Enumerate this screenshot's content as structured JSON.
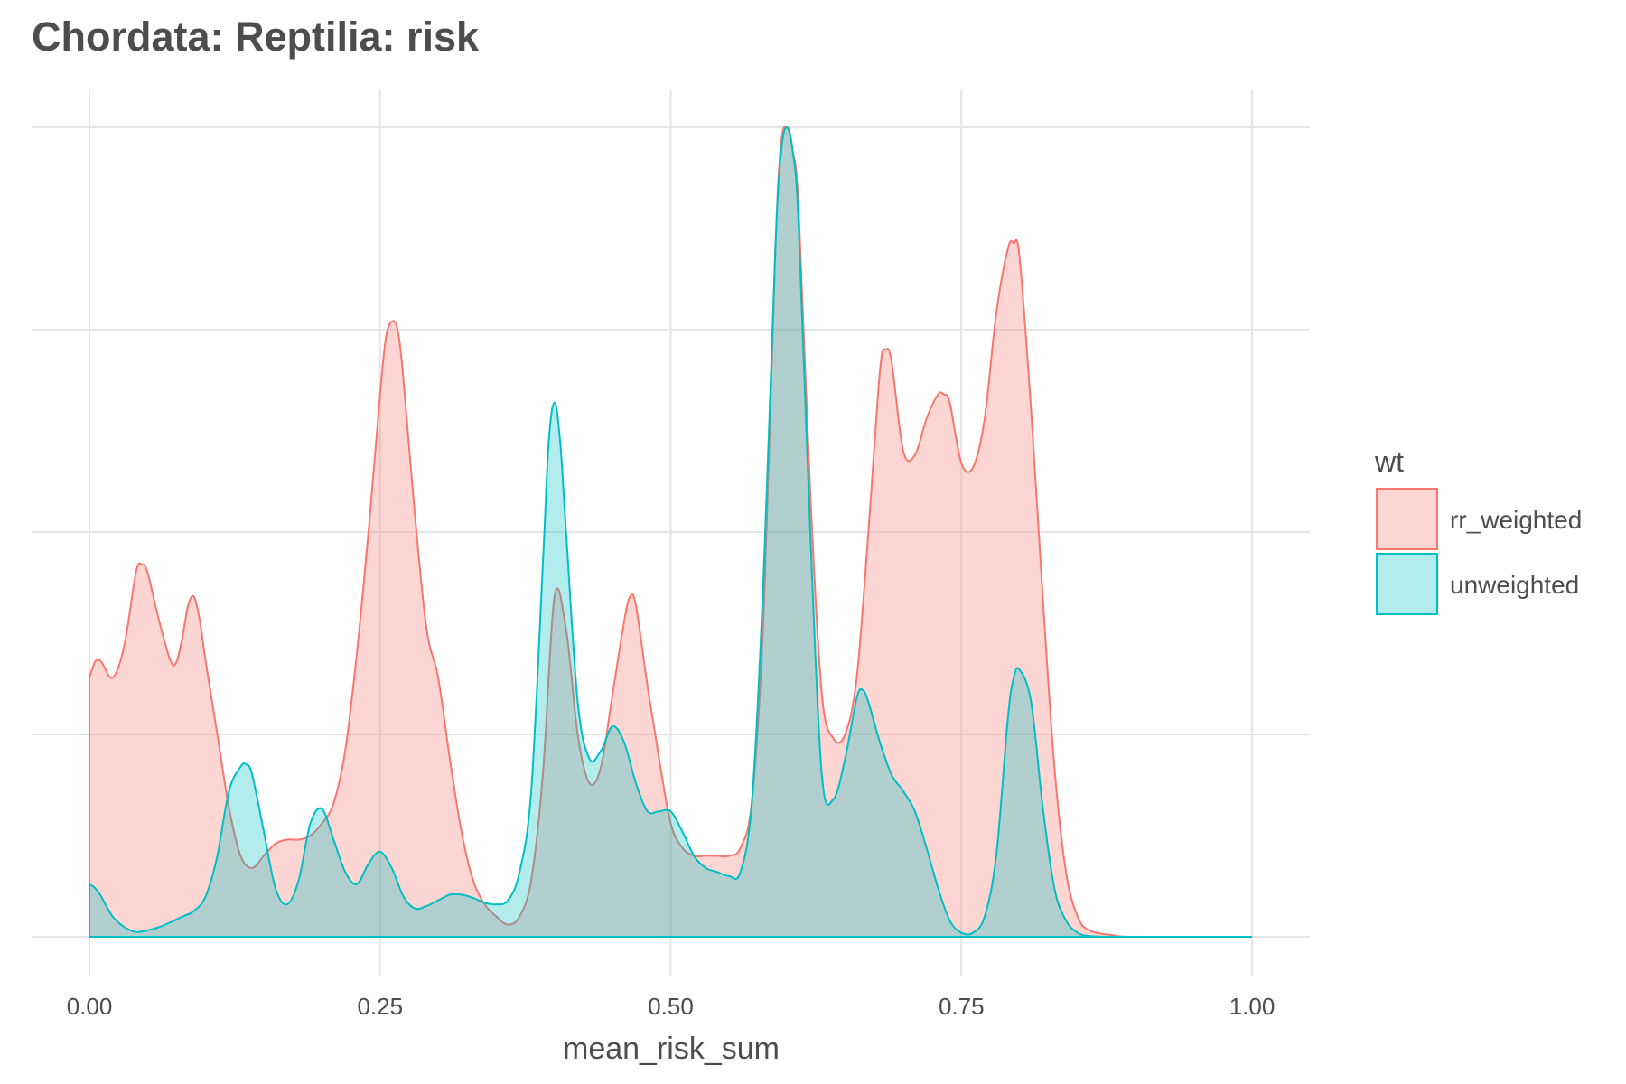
{
  "chart_data": {
    "type": "area",
    "title": "Chordata: Reptilia: risk",
    "xlabel": "mean_risk_sum",
    "ylabel": "",
    "xlim": [
      0,
      1
    ],
    "ylim": [
      0,
      1
    ],
    "x_ticks": [
      0,
      0.25,
      0.5,
      0.75,
      1
    ],
    "x_tick_labels": [
      "0.00",
      "0.25",
      "0.50",
      "0.75",
      "1.00"
    ],
    "y_tick_labels": [],
    "grid": true,
    "legend_title": "wt",
    "legend_position": "right",
    "series": [
      {
        "name": "rr_weighted",
        "color": "#F8766D",
        "x": [
          0,
          0.005,
          0.01,
          0.02,
          0.03,
          0.04,
          0.045,
          0.05,
          0.06,
          0.07,
          0.075,
          0.08,
          0.085,
          0.09,
          0.095,
          0.1,
          0.11,
          0.12,
          0.13,
          0.14,
          0.15,
          0.16,
          0.17,
          0.18,
          0.19,
          0.2,
          0.21,
          0.22,
          0.23,
          0.24,
          0.25,
          0.255,
          0.26,
          0.265,
          0.27,
          0.28,
          0.29,
          0.3,
          0.31,
          0.32,
          0.33,
          0.34,
          0.35,
          0.36,
          0.37,
          0.38,
          0.39,
          0.4,
          0.41,
          0.42,
          0.43,
          0.44,
          0.45,
          0.46,
          0.465,
          0.47,
          0.48,
          0.49,
          0.5,
          0.51,
          0.52,
          0.53,
          0.54,
          0.55,
          0.56,
          0.57,
          0.58,
          0.59,
          0.595,
          0.6,
          0.605,
          0.61,
          0.62,
          0.63,
          0.64,
          0.65,
          0.66,
          0.67,
          0.68,
          0.685,
          0.69,
          0.7,
          0.71,
          0.72,
          0.73,
          0.735,
          0.74,
          0.75,
          0.76,
          0.77,
          0.78,
          0.79,
          0.795,
          0.8,
          0.81,
          0.82,
          0.83,
          0.84,
          0.85,
          0.86,
          0.88,
          0.9,
          1.0
        ],
        "y": [
          0.32,
          0.34,
          0.34,
          0.32,
          0.36,
          0.45,
          0.46,
          0.45,
          0.39,
          0.34,
          0.34,
          0.37,
          0.41,
          0.42,
          0.39,
          0.34,
          0.25,
          0.16,
          0.1,
          0.085,
          0.1,
          0.115,
          0.12,
          0.12,
          0.125,
          0.14,
          0.165,
          0.23,
          0.35,
          0.5,
          0.67,
          0.74,
          0.76,
          0.75,
          0.69,
          0.52,
          0.38,
          0.32,
          0.22,
          0.13,
          0.07,
          0.04,
          0.025,
          0.015,
          0.025,
          0.07,
          0.2,
          0.42,
          0.38,
          0.25,
          0.19,
          0.21,
          0.3,
          0.39,
          0.42,
          0.41,
          0.31,
          0.22,
          0.14,
          0.11,
          0.1,
          0.1,
          0.1,
          0.1,
          0.11,
          0.17,
          0.4,
          0.85,
          0.98,
          1.0,
          0.97,
          0.9,
          0.55,
          0.3,
          0.245,
          0.25,
          0.32,
          0.5,
          0.7,
          0.725,
          0.71,
          0.6,
          0.595,
          0.64,
          0.67,
          0.67,
          0.66,
          0.585,
          0.58,
          0.64,
          0.77,
          0.85,
          0.857,
          0.84,
          0.65,
          0.42,
          0.21,
          0.08,
          0.025,
          0.008,
          0.002,
          0.0,
          0.0
        ]
      },
      {
        "name": "unweighted",
        "color": "#00BFC4",
        "x": [
          0,
          0.005,
          0.01,
          0.02,
          0.03,
          0.04,
          0.05,
          0.06,
          0.07,
          0.08,
          0.09,
          0.1,
          0.11,
          0.12,
          0.13,
          0.135,
          0.14,
          0.15,
          0.16,
          0.17,
          0.18,
          0.19,
          0.2,
          0.21,
          0.22,
          0.23,
          0.24,
          0.25,
          0.26,
          0.27,
          0.28,
          0.29,
          0.3,
          0.31,
          0.32,
          0.33,
          0.34,
          0.35,
          0.36,
          0.37,
          0.38,
          0.39,
          0.395,
          0.4,
          0.405,
          0.41,
          0.42,
          0.43,
          0.44,
          0.45,
          0.46,
          0.47,
          0.48,
          0.49,
          0.5,
          0.51,
          0.52,
          0.53,
          0.54,
          0.55,
          0.56,
          0.57,
          0.58,
          0.59,
          0.595,
          0.6,
          0.605,
          0.61,
          0.62,
          0.63,
          0.64,
          0.65,
          0.66,
          0.665,
          0.67,
          0.68,
          0.69,
          0.7,
          0.71,
          0.72,
          0.73,
          0.74,
          0.75,
          0.76,
          0.77,
          0.78,
          0.79,
          0.795,
          0.8,
          0.81,
          0.82,
          0.83,
          0.84,
          0.85,
          0.86,
          0.88,
          0.9,
          1.0
        ],
        "y": [
          0.065,
          0.06,
          0.05,
          0.025,
          0.012,
          0.006,
          0.008,
          0.012,
          0.018,
          0.025,
          0.032,
          0.05,
          0.1,
          0.18,
          0.21,
          0.213,
          0.2,
          0.13,
          0.06,
          0.04,
          0.07,
          0.14,
          0.158,
          0.12,
          0.08,
          0.065,
          0.09,
          0.105,
          0.085,
          0.05,
          0.035,
          0.038,
          0.045,
          0.052,
          0.052,
          0.048,
          0.042,
          0.04,
          0.045,
          0.08,
          0.18,
          0.46,
          0.61,
          0.66,
          0.61,
          0.5,
          0.29,
          0.22,
          0.23,
          0.26,
          0.24,
          0.19,
          0.155,
          0.155,
          0.155,
          0.13,
          0.1,
          0.085,
          0.08,
          0.075,
          0.08,
          0.17,
          0.45,
          0.85,
          0.97,
          1.0,
          0.97,
          0.88,
          0.5,
          0.2,
          0.17,
          0.22,
          0.295,
          0.305,
          0.29,
          0.24,
          0.2,
          0.18,
          0.155,
          0.11,
          0.06,
          0.02,
          0.005,
          0.005,
          0.025,
          0.1,
          0.27,
          0.32,
          0.33,
          0.29,
          0.16,
          0.06,
          0.02,
          0.005,
          0.001,
          0.0,
          0.0,
          0.0
        ]
      }
    ]
  }
}
